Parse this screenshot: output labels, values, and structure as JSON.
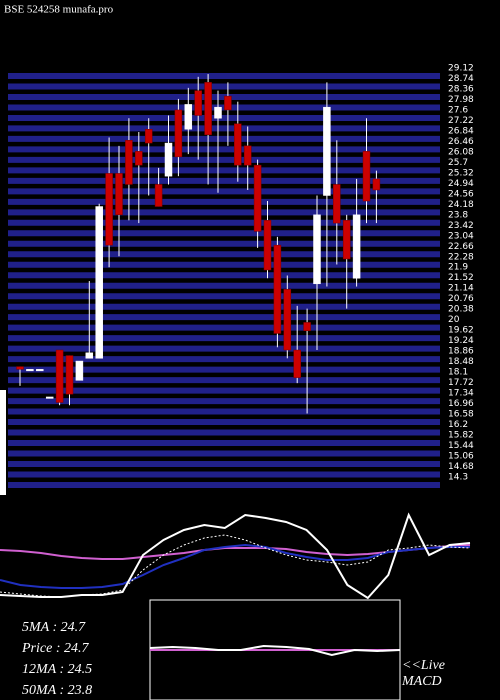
{
  "chart_data": [
    {
      "type": "candlestick",
      "title": "BSE 524258 munafa.pro",
      "ylim": [
        13.9,
        29.12
      ],
      "yticks": [
        29.12,
        28.74,
        28.36,
        27.98,
        27.6,
        27.22,
        26.84,
        26.46,
        26.08,
        25.7,
        25.32,
        24.94,
        24.56,
        24.18,
        23.8,
        23.42,
        23.04,
        22.66,
        22.28,
        21.9,
        21.52,
        21.14,
        20.76,
        20.38,
        20,
        19.62,
        19.24,
        18.86,
        18.48,
        18.1,
        17.72,
        17.34,
        16.96,
        16.58,
        16.2,
        15.82,
        15.44,
        15.06,
        14.68,
        14.3
      ],
      "grid": true,
      "grid_color": "#20208a",
      "up_color": "#ffffff",
      "down_color": "#cc0000",
      "open": [
        18.3,
        18.2,
        18.2,
        17.2,
        18.9,
        18.7,
        17.8,
        18.6,
        18.6,
        25.3,
        25.3,
        26.5,
        26.1,
        26.9,
        24.9,
        25.2,
        27.6,
        26.9,
        28.3,
        28.6,
        27.3,
        28.1,
        27.1,
        26.3,
        25.6,
        23.6,
        22.7,
        21.1,
        18.9,
        19.9,
        21.3,
        24.5,
        24.9,
        23.6,
        21.5,
        26.1,
        25.1
      ],
      "high": [
        18.3,
        18.2,
        18.2,
        17.2,
        18.9,
        18.7,
        18.5,
        21.4,
        24.2,
        26.6,
        26.3,
        27.3,
        26.8,
        27.3,
        25.5,
        27.4,
        28.0,
        28.4,
        28.8,
        28.9,
        28.3,
        28.6,
        27.9,
        27.0,
        25.8,
        24.3,
        23.0,
        21.6,
        20.5,
        20.4,
        24.5,
        28.6,
        26.5,
        23.8,
        25.1,
        27.3,
        25.4
      ],
      "low": [
        17.6,
        18.2,
        18.2,
        17.2,
        16.9,
        16.9,
        17.8,
        18.6,
        18.6,
        21.9,
        22.3,
        23.6,
        23.5,
        24.5,
        24.1,
        24.9,
        25.2,
        26.0,
        25.8,
        24.9,
        24.6,
        26.3,
        25.0,
        24.7,
        22.6,
        21.5,
        19.0,
        18.6,
        17.7,
        16.6,
        18.9,
        21.2,
        22.0,
        20.4,
        21.2,
        23.5,
        23.5
      ],
      "close": [
        18.2,
        18.2,
        18.2,
        17.2,
        17.0,
        17.3,
        18.5,
        18.8,
        24.1,
        22.7,
        23.8,
        24.9,
        25.6,
        26.4,
        24.1,
        26.4,
        25.9,
        27.8,
        27.4,
        26.7,
        27.7,
        27.6,
        25.6,
        25.6,
        23.2,
        21.8,
        19.5,
        18.9,
        17.9,
        19.6,
        23.8,
        27.7,
        23.5,
        22.2,
        23.8,
        24.3,
        24.7
      ],
      "annotations": [
        "5MA : 24.7",
        "Price : 24.7",
        "12MA : 24.5",
        "50MA : 23.8"
      ]
    },
    {
      "type": "line",
      "ylim": [
        0,
        100
      ],
      "series": [
        {
          "color": "#d060d0",
          "values": [
            50,
            49,
            47,
            44,
            42,
            41,
            41,
            43,
            45,
            47,
            50,
            52,
            52,
            52,
            51,
            48,
            46,
            45,
            46,
            48,
            50,
            52,
            54,
            55
          ]
        },
        {
          "color": "#2030c0",
          "values": [
            20,
            15,
            13,
            12,
            12,
            13,
            16,
            25,
            35,
            42,
            50,
            53,
            55,
            53,
            47,
            43,
            40,
            40,
            42,
            48,
            50,
            52,
            53,
            53
          ]
        },
        {
          "color": "#ffffff",
          "dash": true,
          "values": [
            8,
            6,
            4,
            3,
            5,
            6,
            10,
            30,
            45,
            55,
            62,
            65,
            60,
            52,
            45,
            40,
            38,
            35,
            38,
            50,
            52,
            55,
            53,
            52
          ]
        },
        {
          "color": "#ffffff",
          "values": [
            5,
            4,
            3,
            3,
            5,
            5,
            8,
            45,
            60,
            70,
            75,
            72,
            85,
            82,
            78,
            70,
            50,
            15,
            2,
            25,
            85,
            45,
            55,
            57
          ]
        }
      ]
    },
    {
      "type": "line",
      "title": "MACD",
      "annotation": "<<Live",
      "ylim": [
        0,
        100
      ],
      "series": [
        {
          "color": "#d060d0",
          "values": [
            50,
            50,
            50,
            50,
            50,
            50,
            50,
            50,
            50,
            50,
            50,
            50
          ]
        },
        {
          "color": "#ffffff",
          "values": [
            52,
            53,
            52,
            50,
            50,
            54,
            53,
            51,
            45,
            50,
            49,
            50
          ]
        }
      ]
    }
  ]
}
